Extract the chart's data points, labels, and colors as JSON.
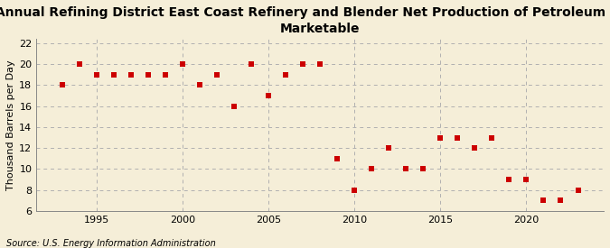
{
  "title": "Annual Refining District East Coast Refinery and Blender Net Production of Petroleum Coke\nMarketable",
  "ylabel": "Thousand Barrels per Day",
  "source": "Source: U.S. Energy Information Administration",
  "years": [
    1993,
    1994,
    1995,
    1996,
    1997,
    1998,
    1999,
    2000,
    2001,
    2002,
    2003,
    2004,
    2005,
    2006,
    2007,
    2008,
    2009,
    2010,
    2011,
    2012,
    2013,
    2014,
    2015,
    2016,
    2017,
    2018,
    2019,
    2020,
    2021,
    2022,
    2023
  ],
  "values": [
    18,
    20,
    19,
    19,
    19,
    19,
    19,
    20,
    18,
    19,
    16,
    20,
    17,
    19,
    20,
    20,
    11,
    8,
    10,
    12,
    10,
    10,
    13,
    13,
    12,
    13,
    9,
    9,
    7,
    7,
    8
  ],
  "xlim": [
    1991.5,
    2024.5
  ],
  "ylim": [
    6,
    22.4
  ],
  "yticks": [
    6,
    8,
    10,
    12,
    14,
    16,
    18,
    20,
    22
  ],
  "xticks": [
    1995,
    2000,
    2005,
    2010,
    2015,
    2020
  ],
  "marker_color": "#cc0000",
  "marker_size": 20,
  "bg_color": "#f5eed8",
  "grid_color": "#b0b0b0",
  "title_fontsize": 10,
  "label_fontsize": 8,
  "tick_fontsize": 8,
  "source_fontsize": 7
}
